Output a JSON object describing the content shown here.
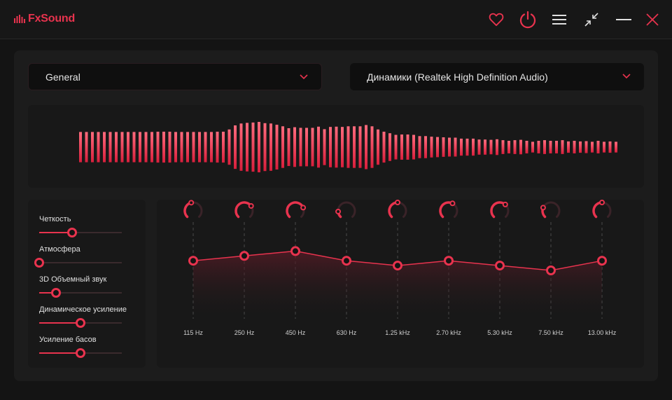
{
  "app": {
    "title": "FxSound"
  },
  "titlebar": {
    "favorite_icon": "heart-icon",
    "power_icon": "power-icon",
    "menu_icon": "hamburger-menu-icon",
    "minimize_view_icon": "collapse-arrows-icon",
    "minimize_icon": "minimize-icon",
    "close_icon": "close-icon"
  },
  "preset": {
    "value": "General"
  },
  "output_device": {
    "value": "Динамики (Realtek High Definition Audio)"
  },
  "colors": {
    "accent": "#e8334e",
    "background": "#141414",
    "panel": "#1c1c1c"
  },
  "visualizer": {
    "levels": [
      0.48,
      0.48,
      0.48,
      0.48,
      0.48,
      0.48,
      0.48,
      0.48,
      0.48,
      0.48,
      0.48,
      0.48,
      0.48,
      0.49,
      0.49,
      0.49,
      0.48,
      0.48,
      0.48,
      0.48,
      0.48,
      0.48,
      0.48,
      0.49,
      0.49,
      0.56,
      0.69,
      0.75,
      0.77,
      0.78,
      0.8,
      0.76,
      0.75,
      0.71,
      0.66,
      0.6,
      0.63,
      0.61,
      0.61,
      0.61,
      0.65,
      0.57,
      0.64,
      0.65,
      0.64,
      0.66,
      0.66,
      0.66,
      0.7,
      0.66,
      0.56,
      0.49,
      0.44,
      0.39,
      0.4,
      0.4,
      0.39,
      0.35,
      0.35,
      0.33,
      0.32,
      0.31,
      0.3,
      0.3,
      0.27,
      0.27,
      0.27,
      0.24,
      0.24,
      0.23,
      0.25,
      0.22,
      0.2,
      0.22,
      0.23,
      0.2,
      0.17,
      0.2,
      0.22,
      0.2,
      0.2,
      0.22,
      0.18,
      0.2,
      0.18,
      0.19,
      0.17,
      0.2,
      0.17,
      0.18,
      0.17
    ]
  },
  "effects": [
    {
      "label": "Четкость",
      "value": 0.4
    },
    {
      "label": "Атмосфера",
      "value": 0.0
    },
    {
      "label": "3D Объемный звук",
      "value": 0.2
    },
    {
      "label": "Динамическое усиление",
      "value": 0.5
    },
    {
      "label": "Усиление басов",
      "value": 0.5
    }
  ],
  "eq": {
    "bands": [
      {
        "freq": "115 Hz",
        "gain": 0.6,
        "knob": 0.45
      },
      {
        "freq": "250 Hz",
        "gain": 0.65,
        "knob": 0.7
      },
      {
        "freq": "450 Hz",
        "gain": 0.7,
        "knob": 0.75
      },
      {
        "freq": "630 Hz",
        "gain": 0.6,
        "knob": 0.15
      },
      {
        "freq": "1.25 kHz",
        "gain": 0.55,
        "knob": 0.5
      },
      {
        "freq": "2.70 kHz",
        "gain": 0.6,
        "knob": 0.6
      },
      {
        "freq": "5.30 kHz",
        "gain": 0.55,
        "knob": 0.65
      },
      {
        "freq": "7.50 kHz",
        "gain": 0.5,
        "knob": 0.25
      },
      {
        "freq": "13.00 kHz",
        "gain": 0.6,
        "knob": 0.5
      }
    ]
  }
}
